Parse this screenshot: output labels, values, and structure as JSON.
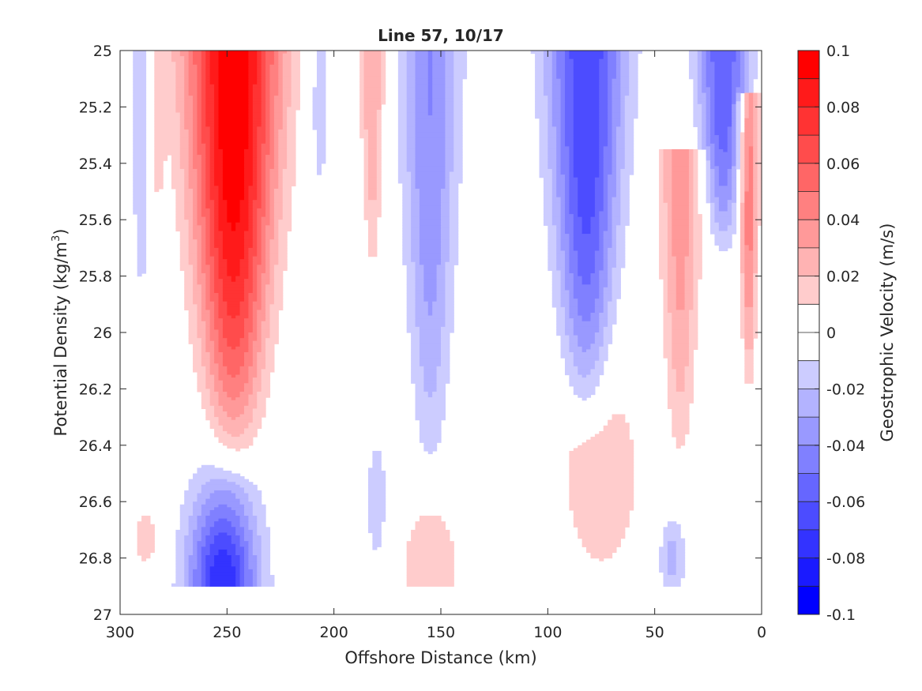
{
  "chart_data": {
    "type": "heatmap",
    "title": "Line 57, 10/17",
    "xlabel": "Offshore Distance (km)",
    "ylabel_main": "Potential Density (kg/m",
    "ylabel_sup": "3",
    "ylabel_close": ")",
    "colorbar_label": "Geostrophic Velocity (m/s)",
    "xlim": [
      300,
      0
    ],
    "x_reversed": true,
    "ylim": [
      25,
      27
    ],
    "y_reversed": true,
    "clim": [
      -0.1,
      0.1
    ],
    "contour_step": 0.01,
    "x_ticks": [
      300,
      250,
      200,
      150,
      100,
      50,
      0
    ],
    "x_tick_labels": [
      "300",
      "250",
      "200",
      "150",
      "100",
      "50",
      "0"
    ],
    "y_ticks": [
      25,
      25.2,
      25.4,
      25.6,
      25.8,
      26,
      26.2,
      26.4,
      26.6,
      26.8,
      27
    ],
    "y_tick_labels": [
      "25",
      "25.2",
      "25.4",
      "25.6",
      "25.8",
      "26",
      "26.2",
      "26.4",
      "26.6",
      "26.8",
      "27"
    ],
    "colorbar_ticks": [
      0.1,
      0.08,
      0.06,
      0.04,
      0.02,
      0,
      -0.02,
      -0.04,
      -0.06,
      -0.08,
      -0.1
    ],
    "colorbar_tick_labels": [
      "0.1",
      "0.08",
      "0.06",
      "0.04",
      "0.02",
      "0",
      "-0.02",
      "-0.04",
      "-0.06",
      "-0.08",
      "-0.1"
    ],
    "colormap": {
      "negative_end": "#0000ff",
      "zero": "#ffffff",
      "positive_end": "#ff0000"
    },
    "data_density_max": 26.9,
    "features": [
      {
        "kind": "jet",
        "x": 247,
        "y_top": 25.0,
        "y_bottom": 26.42,
        "peak": 0.1,
        "width_km": 22,
        "sign": "positive"
      },
      {
        "kind": "jet",
        "x": 290,
        "y_top": 25.0,
        "y_bottom": 26.0,
        "peak": -0.02,
        "width_km": 6,
        "sign": "negative"
      },
      {
        "kind": "jet",
        "x": 283,
        "y_top": 25.0,
        "y_bottom": 25.7,
        "peak": 0.015,
        "width_km": 5,
        "sign": "positive"
      },
      {
        "kind": "jet",
        "x": 207,
        "y_top": 25.0,
        "y_bottom": 25.7,
        "peak": -0.015,
        "width_km": 8,
        "sign": "negative"
      },
      {
        "kind": "jet",
        "x": 182,
        "y_top": 25.0,
        "y_bottom": 25.8,
        "peak": 0.03,
        "width_km": 6,
        "sign": "positive"
      },
      {
        "kind": "jet",
        "x": 155,
        "y_top": 25.0,
        "y_bottom": 26.5,
        "peak": -0.04,
        "width_km": 14,
        "sign": "negative"
      },
      {
        "kind": "jet",
        "x": 132,
        "y_top": 25.0,
        "y_bottom": 25.1,
        "peak": 0.012,
        "width_km": 3,
        "sign": "positive"
      },
      {
        "kind": "jet",
        "x": 82,
        "y_top": 25.0,
        "y_bottom": 26.3,
        "peak": -0.07,
        "width_km": 18,
        "sign": "negative"
      },
      {
        "kind": "jet",
        "x": 18,
        "y_top": 25.0,
        "y_bottom": 25.7,
        "peak": -0.06,
        "width_km": 12,
        "sign": "negative"
      },
      {
        "kind": "jet",
        "x": 38,
        "y_top": 25.4,
        "y_bottom": 26.45,
        "peak": 0.035,
        "width_km": 10,
        "sign": "positive"
      },
      {
        "kind": "jet",
        "x": 6,
        "y_top": 25.2,
        "y_bottom": 26.2,
        "peak": 0.05,
        "width_km": 5,
        "sign": "positive"
      },
      {
        "kind": "blob",
        "x": 252,
        "y": 26.9,
        "peak": -0.08,
        "width_km": 16,
        "height": 0.35,
        "sign": "negative"
      },
      {
        "kind": "blob",
        "x": 180,
        "y": 26.6,
        "peak": -0.015,
        "width_km": 6,
        "height": 0.3,
        "sign": "negative"
      },
      {
        "kind": "blob",
        "x": 155,
        "y": 26.85,
        "peak": 0.02,
        "width_km": 14,
        "height": 0.25,
        "sign": "positive"
      },
      {
        "kind": "blob",
        "x": 75,
        "y": 26.5,
        "peak": 0.018,
        "width_km": 20,
        "height": 0.4,
        "sign": "positive"
      },
      {
        "kind": "blob",
        "x": 288,
        "y": 26.73,
        "peak": 0.015,
        "width_km": 7,
        "height": 0.13,
        "sign": "positive"
      },
      {
        "kind": "blob",
        "x": 42,
        "y": 26.8,
        "peak": -0.025,
        "width_km": 6,
        "height": 0.15,
        "sign": "negative"
      }
    ]
  }
}
